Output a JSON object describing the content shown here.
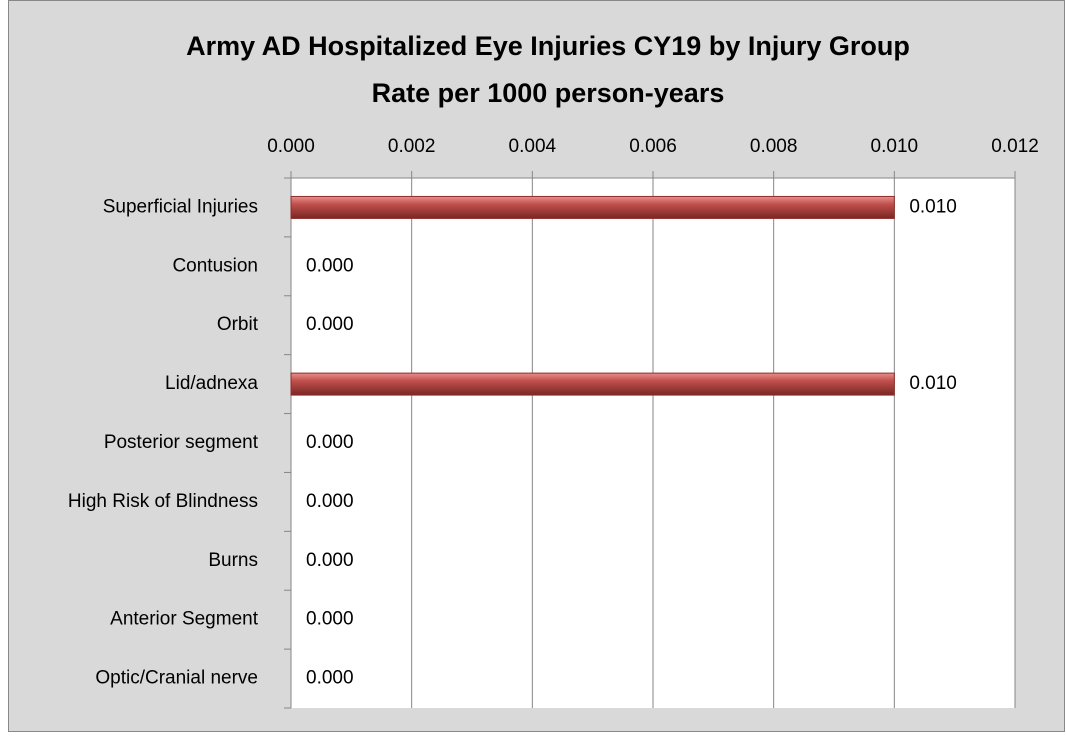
{
  "chart_data": {
    "type": "bar",
    "orientation": "horizontal",
    "title": "Army AD Hospitalized Eye Injuries CY19 by Injury Group",
    "subtitle": "Rate per 1000 person-years",
    "categories": [
      "Superficial Injuries",
      "Contusion",
      "Orbit",
      "Lid/adnexa",
      "Posterior segment",
      "High Risk of Blindness",
      "Burns",
      "Anterior Segment",
      "Optic/Cranial nerve"
    ],
    "values": [
      0.01,
      0,
      0,
      0.01,
      0,
      0,
      0,
      0,
      0
    ],
    "value_labels": [
      "0.010",
      "0.000",
      "0.000",
      "0.010",
      "0.000",
      "0.000",
      "0.000",
      "0.000",
      "0.000"
    ],
    "color": "#c0504d",
    "xlim": [
      0,
      0.012
    ],
    "xticks": [
      {
        "value": 0,
        "label": "0.000"
      },
      {
        "value": 0.002,
        "label": "0.002"
      },
      {
        "value": 0.004,
        "label": "0.004"
      },
      {
        "value": 0.006,
        "label": "0.006"
      },
      {
        "value": 0.008,
        "label": "0.008"
      },
      {
        "value": 0.01,
        "label": "0.010"
      },
      {
        "value": 0.012,
        "label": "0.012"
      }
    ],
    "grid": true
  }
}
